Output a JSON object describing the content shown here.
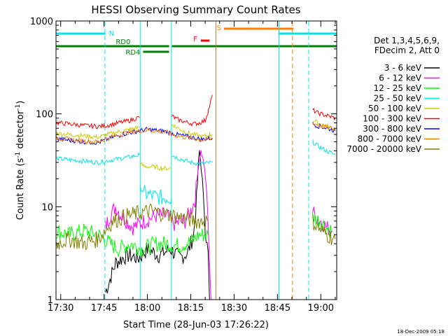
{
  "chart_data": {
    "type": "line",
    "title": "HESSI Observing Summary Count Rates",
    "xlabel": "Start Time (28-Jun-03 17:26:22)",
    "ylabel_main": "Count Rate (s",
    "ylabel_sup1": "-1",
    "ylabel_mid": " detector",
    "ylabel_sup2": "-1",
    "ylabel_end": ")",
    "y_scale": "log",
    "ylim": [
      1,
      1000
    ],
    "xlim_minutes": [
      -1.63,
      95.5
    ],
    "x_ticks": [
      {
        "label": "17:30",
        "minutes": 0
      },
      {
        "label": "17:45",
        "minutes": 15
      },
      {
        "label": "18:00",
        "minutes": 30
      },
      {
        "label": "18:15",
        "minutes": 45
      },
      {
        "label": "18:30",
        "minutes": 60
      },
      {
        "label": "18:45",
        "minutes": 75
      },
      {
        "label": "19:00",
        "minutes": 90
      }
    ],
    "y_ticks": [
      {
        "label": "1",
        "value": 1
      },
      {
        "label": "10",
        "value": 10
      },
      {
        "label": "100",
        "value": 100
      },
      {
        "label": "1000",
        "value": 1000
      }
    ],
    "legend": {
      "placement": "right",
      "header_line1": "Det 1,3,4,5,6,9,",
      "header_line2": "FDecim 2, Att 0",
      "entries": [
        {
          "label": "3 - 6 keV",
          "color": "#000000"
        },
        {
          "label": "6 - 12 keV",
          "color": "#ff00ff"
        },
        {
          "label": "12 - 25 keV",
          "color": "#00ff00"
        },
        {
          "label": "25 - 50 keV",
          "color": "#00e5e5"
        },
        {
          "label": "50 - 100 keV",
          "color": "#cccc00"
        },
        {
          "label": "100 - 300 keV",
          "color": "#ff0000"
        },
        {
          "label": "300 - 800 keV",
          "color": "#0000ff"
        },
        {
          "label": "800 - 7000 keV",
          "color": "#ff8000"
        },
        {
          "label": "7000 - 20000 keV",
          "color": "#808000"
        }
      ]
    },
    "flags": [
      {
        "label": "N",
        "color": "#00e5e5",
        "start": -1.6,
        "end": 15.5
      },
      {
        "label": "",
        "color": "#00e5e5",
        "start": 75.5,
        "end": 95.5
      },
      {
        "label": "S",
        "color": "#ff8000",
        "start": 56.5,
        "end": 80.5
      },
      {
        "label": "RD0",
        "color": "#008000",
        "start": -1.6,
        "end": 37.5
      },
      {
        "label": "",
        "color": "#008000",
        "start": 38.5,
        "end": 95.5
      },
      {
        "label": "RD4",
        "color": "#008000",
        "start": 28.5,
        "end": 37.5
      },
      {
        "label": "F",
        "color": "#ff0000",
        "start": 48.5,
        "end": 51.5
      }
    ],
    "vertical_markers": [
      {
        "minutes": 15.3,
        "color": "#00e5e5",
        "style": "dashed"
      },
      {
        "minutes": 27.5,
        "color": "#00e5e5",
        "style": "solid"
      },
      {
        "minutes": 38.3,
        "color": "#00e5e5",
        "style": "solid"
      },
      {
        "minutes": 53.7,
        "color": "#c08020",
        "style": "solid"
      },
      {
        "minutes": 75.5,
        "color": "#00e5e5",
        "style": "solid"
      },
      {
        "minutes": 80.2,
        "color": "#ff8000",
        "style": "dashed"
      },
      {
        "minutes": 85.8,
        "color": "#00e5e5",
        "style": "dashed"
      }
    ],
    "series": [
      {
        "name": "3 - 6 keV",
        "color": "#000000",
        "segments": [
          {
            "x": [
              15.5,
              19,
              23,
              27,
              30,
              34,
              38,
              41,
              44,
              46,
              47,
              48,
              49,
              50,
              51,
              51.5
            ],
            "y": [
              1.2,
              2.5,
              3,
              2.8,
              3.5,
              3,
              3.5,
              2.8,
              3.2,
              5,
              12,
              40,
              20,
              6,
              3,
              1
            ]
          }
        ]
      },
      {
        "name": "6 - 12 keV",
        "color": "#ff00ff",
        "segments": [
          {
            "x": [
              15.5,
              17,
              19,
              21,
              25,
              29,
              33,
              37,
              39,
              43,
              45,
              46.5,
              47.5,
              48.5,
              49.5,
              50.5,
              51.3,
              52
            ],
            "y": [
              6,
              8,
              10,
              8,
              6,
              7,
              8,
              8,
              6.5,
              7,
              9,
              12,
              25,
              40,
              30,
              15,
              4,
              1
            ]
          },
          {
            "x": [
              87.2,
              88,
              90,
              92,
              94
            ],
            "y": [
              9,
              8,
              7,
              6,
              5.5
            ]
          }
        ]
      },
      {
        "name": "12 - 25 keV",
        "color": "#00ff00",
        "segments": [
          {
            "x": [
              -1.5,
              3,
              8,
              13,
              15,
              17,
              20,
              24,
              28,
              33,
              37,
              41,
              45,
              48,
              51
            ],
            "y": [
              5.5,
              5,
              5.5,
              5,
              4.5,
              4,
              3.5,
              4,
              3.5,
              4,
              4,
              3.8,
              4.2,
              5,
              5
            ]
          },
          {
            "x": [
              87.2,
              88,
              90,
              92,
              94
            ],
            "y": [
              8,
              7.5,
              7,
              6,
              5.5
            ]
          }
        ]
      },
      {
        "name": "25 - 50 keV",
        "color": "#00e5e5",
        "segments": [
          {
            "x": [
              -1.5,
              3,
              8,
              13,
              18,
              23,
              27.3
            ],
            "y": [
              33,
              32,
              31,
              30,
              32,
              34,
              36
            ]
          },
          {
            "x": [
              27.5,
              29,
              32,
              35,
              38.3
            ],
            "y": [
              16,
              14,
              13,
              12.5,
              12.5
            ]
          },
          {
            "x": [
              38.5,
              41,
              45,
              49,
              52.5
            ],
            "y": [
              36,
              33,
              30,
              29,
              30
            ]
          },
          {
            "x": [
              87.2,
              89,
              92,
              95
            ],
            "y": [
              50,
              45,
              40,
              36
            ]
          }
        ]
      },
      {
        "name": "50 - 100 keV",
        "color": "#cccc00",
        "segments": [
          {
            "x": [
              -1.5,
              3,
              8,
              13,
              18,
              23,
              27.3
            ],
            "y": [
              62,
              60,
              58,
              56,
              62,
              67,
              72
            ]
          },
          {
            "x": [
              27.5,
              29,
              32,
              35,
              38.3
            ],
            "y": [
              29,
              27,
              27,
              26,
              26
            ]
          },
          {
            "x": [
              38.5,
              40,
              43,
              46,
              49,
              52.5
            ],
            "y": [
              78,
              72,
              64,
              60,
              57,
              60
            ]
          },
          {
            "x": [
              87.2,
              89,
              92,
              95
            ],
            "y": [
              85,
              80,
              74,
              68
            ]
          }
        ]
      },
      {
        "name": "100 - 300 keV",
        "color": "#ff0000",
        "segments": [
          {
            "x": [
              -1.5,
              3,
              8,
              13,
              16,
              20,
              24,
              27.3
            ],
            "y": [
              80,
              78,
              75,
              73,
              75,
              80,
              85,
              92
            ]
          },
          {
            "x": [
              38.5,
              40,
              43,
              46,
              48,
              50,
              51.5,
              52.5
            ],
            "y": [
              95,
              88,
              82,
              78,
              80,
              85,
              120,
              160
            ]
          },
          {
            "x": [
              87.2,
              89,
              92,
              95
            ],
            "y": [
              110,
              102,
              96,
              90
            ]
          }
        ]
      },
      {
        "name": "300 - 800 keV",
        "color": "#0000ff",
        "segments": [
          {
            "x": [
              -1.5,
              3,
              8,
              13,
              18,
              23,
              30,
              36,
              40,
              45,
              49,
              52.5
            ],
            "y": [
              54,
              52,
              50,
              49,
              56,
              62,
              68,
              65,
              60,
              56,
              53,
              55
            ]
          },
          {
            "x": [
              87.2,
              89,
              92,
              95
            ],
            "y": [
              78,
              74,
              70,
              66
            ]
          }
        ]
      },
      {
        "name": "800 - 7000 keV",
        "color": "#ff8000",
        "segments": [
          {
            "x": [
              -1.5,
              3,
              8,
              13,
              18,
              23,
              30,
              36,
              40,
              45,
              49,
              52.5
            ],
            "y": [
              55,
              53,
              51,
              50,
              57,
              63,
              67,
              64,
              58,
              55,
              52,
              54
            ]
          },
          {
            "x": [
              87.2,
              89,
              92,
              95
            ],
            "y": [
              80,
              76,
              72,
              68
            ]
          }
        ]
      },
      {
        "name": "7000 - 20000 keV",
        "color": "#808000",
        "segments": [
          {
            "x": [
              -1.5,
              3,
              8,
              13,
              18,
              23,
              27,
              31,
              35,
              39,
              43,
              47,
              51
            ],
            "y": [
              4,
              4.5,
              4,
              4.5,
              7,
              8,
              8.5,
              9,
              8.5,
              8,
              7.5,
              7,
              7
            ]
          },
          {
            "x": [
              87.2,
              89,
              92,
              95
            ],
            "y": [
              7,
              6,
              5,
              4.5
            ]
          }
        ]
      }
    ]
  },
  "footer": {
    "timestamp": "18-Dec-2009 05:18"
  }
}
